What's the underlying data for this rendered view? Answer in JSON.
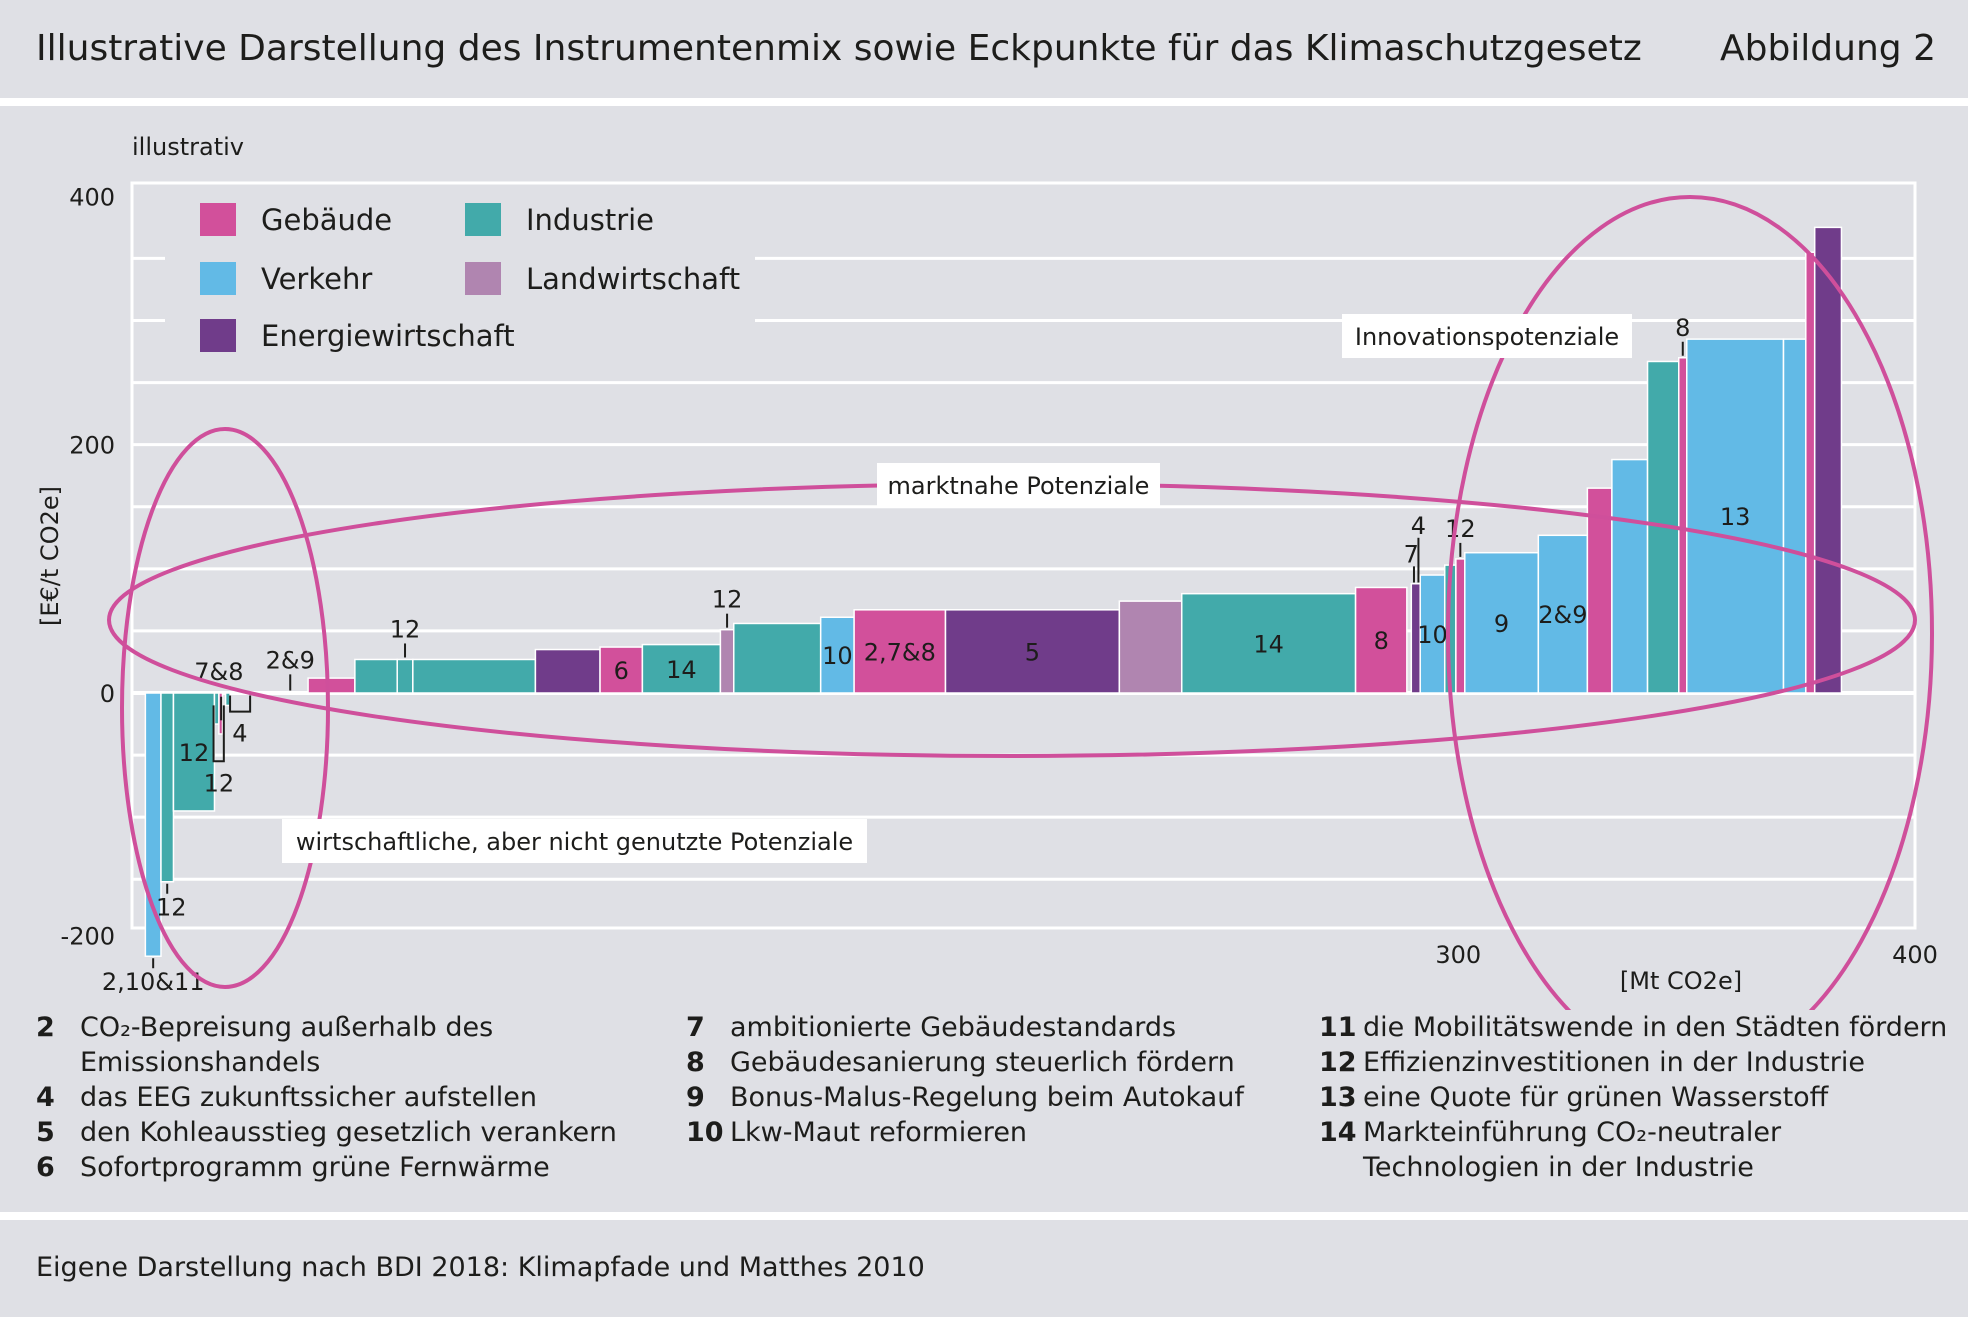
{
  "header": {
    "title": "Illustrative Darstellung des Instrumentenmix sowie Eckpunkte für das Klimaschutzgesetz",
    "figure_label": "Abbildung 2"
  },
  "colors": {
    "Gebäude": "#d2509b",
    "Industrie": "#42aaaa",
    "Verkehr": "#62bae6",
    "Landwirtschaft": "#b085b0",
    "Energiewirtschaft": "#703c8a",
    "ellipse": "#cf4f9b"
  },
  "chart_data": {
    "type": "bar",
    "subtype": "marginal abatement cost curve",
    "note": "illustrativ",
    "ylabel": "[E€/t CO2e]",
    "xlabel": "[Mt CO2e]",
    "ylim": [
      -200,
      400
    ],
    "yticks": [
      "400",
      "200",
      "0",
      "-200"
    ],
    "xlim": [
      0,
      400
    ],
    "xticks": [
      "300",
      "400"
    ],
    "legend": [
      {
        "name": "Gebäude",
        "color": "#d2509b"
      },
      {
        "name": "Industrie",
        "color": "#42aaaa"
      },
      {
        "name": "Verkehr",
        "color": "#62bae6"
      },
      {
        "name": "Landwirtschaft",
        "color": "#b085b0"
      },
      {
        "name": "Energiewirtschaft",
        "color": "#703c8a"
      }
    ],
    "bars": [
      {
        "x0": 3.0,
        "x1": 6.5,
        "y": -212,
        "sector": "Verkehr",
        "label": "2,10&11",
        "pos": "below"
      },
      {
        "x0": 6.5,
        "x1": 9.3,
        "y": -152,
        "sector": "Industrie",
        "label": "12",
        "pos": "below"
      },
      {
        "x0": 9.3,
        "x1": 18.5,
        "y": -95,
        "sector": "Industrie",
        "label": "12",
        "pos": "inside"
      },
      {
        "x0": 18.5,
        "x1": 19.5,
        "y": -25,
        "sector": "Industrie",
        "label": "",
        "pos": "none"
      },
      {
        "x0": 19.5,
        "x1": 20.3,
        "y": -33,
        "sector": "Gebäude",
        "label": "",
        "pos": "none"
      },
      {
        "x0": 21.0,
        "x1": 22.0,
        "y": -10,
        "sector": "Industrie",
        "label": "",
        "pos": "none"
      },
      {
        "x0": 39.5,
        "x1": 50.0,
        "y": 12,
        "sector": "Gebäude",
        "label": "",
        "pos": "none"
      },
      {
        "x0": 50.0,
        "x1": 59.5,
        "y": 27,
        "sector": "Industrie",
        "label": "",
        "pos": "none"
      },
      {
        "x0": 59.5,
        "x1": 63.0,
        "y": 27,
        "sector": "Industrie",
        "label": "12",
        "pos": "above"
      },
      {
        "x0": 63.0,
        "x1": 90.5,
        "y": 27,
        "sector": "Industrie",
        "label": "",
        "pos": "none"
      },
      {
        "x0": 90.5,
        "x1": 105.0,
        "y": 35,
        "sector": "Energiewirtschaft",
        "label": "",
        "pos": "none"
      },
      {
        "x0": 105.0,
        "x1": 114.5,
        "y": 37,
        "sector": "Gebäude",
        "label": "6",
        "pos": "inside"
      },
      {
        "x0": 114.5,
        "x1": 132.0,
        "y": 39,
        "sector": "Industrie",
        "label": "14",
        "pos": "inside"
      },
      {
        "x0": 132.0,
        "x1": 135.0,
        "y": 51,
        "sector": "Landwirtschaft",
        "label": "12",
        "pos": "above"
      },
      {
        "x0": 135.0,
        "x1": 154.5,
        "y": 56,
        "sector": "Industrie",
        "label": "",
        "pos": "none"
      },
      {
        "x0": 154.5,
        "x1": 162.0,
        "y": 61,
        "sector": "Verkehr",
        "label": "10",
        "pos": "inside"
      },
      {
        "x0": 162.0,
        "x1": 182.5,
        "y": 67,
        "sector": "Gebäude",
        "label": "2,7&8",
        "pos": "inside"
      },
      {
        "x0": 182.5,
        "x1": 221.5,
        "y": 67,
        "sector": "Energiewirtschaft",
        "label": "5",
        "pos": "inside"
      },
      {
        "x0": 221.5,
        "x1": 235.5,
        "y": 74,
        "sector": "Landwirtschaft",
        "label": "",
        "pos": "none"
      },
      {
        "x0": 235.5,
        "x1": 274.5,
        "y": 80,
        "sector": "Industrie",
        "label": "14",
        "pos": "inside"
      },
      {
        "x0": 274.5,
        "x1": 286.0,
        "y": 85,
        "sector": "Gebäude",
        "label": "8",
        "pos": "inside"
      },
      {
        "x0": 287.0,
        "x1": 289.0,
        "y": 88,
        "sector": "Energiewirtschaft",
        "label": "",
        "pos": "none"
      },
      {
        "x0": 289.0,
        "x1": 294.5,
        "y": 95,
        "sector": "Verkehr",
        "label": "10",
        "pos": "inside"
      },
      {
        "x0": 294.5,
        "x1": 297.0,
        "y": 103,
        "sector": "Industrie",
        "label": "",
        "pos": "none"
      },
      {
        "x0": 297.0,
        "x1": 299.0,
        "y": 108,
        "sector": "Gebäude",
        "label": "12",
        "pos": "above"
      },
      {
        "x0": 299.0,
        "x1": 315.5,
        "y": 113,
        "sector": "Verkehr",
        "label": "9",
        "pos": "inside"
      },
      {
        "x0": 315.5,
        "x1": 326.5,
        "y": 127,
        "sector": "Verkehr",
        "label": "2&9",
        "pos": "inside"
      },
      {
        "x0": 326.5,
        "x1": 332.0,
        "y": 165,
        "sector": "Gebäude",
        "label": "",
        "pos": "none"
      },
      {
        "x0": 332.0,
        "x1": 340.0,
        "y": 188,
        "sector": "Verkehr",
        "label": "",
        "pos": "none"
      },
      {
        "x0": 340.0,
        "x1": 347.0,
        "y": 267,
        "sector": "Industrie",
        "label": "",
        "pos": "none"
      },
      {
        "x0": 347.0,
        "x1": 348.8,
        "y": 270,
        "sector": "Gebäude",
        "label": "8",
        "pos": "above"
      },
      {
        "x0": 348.8,
        "x1": 370.5,
        "y": 285,
        "sector": "Verkehr",
        "label": "13",
        "pos": "inside"
      },
      {
        "x0": 370.5,
        "x1": 375.5,
        "y": 285,
        "sector": "Verkehr",
        "label": "",
        "pos": "none"
      },
      {
        "x0": 375.5,
        "x1": 377.5,
        "y": 355,
        "sector": "Gebäude",
        "label": "",
        "pos": "none"
      },
      {
        "x0": 377.5,
        "x1": 383.5,
        "y": 375,
        "sector": "Energiewirtschaft",
        "label": "",
        "pos": "none"
      }
    ],
    "extra_labels": [
      "7&8",
      "12",
      "4",
      "2&9",
      "7",
      "4"
    ],
    "annotations": [
      "marktnahe Potenziale",
      "Innovationspotenziale",
      "wirtschaftliche, aber nicht genutzte Potenziale"
    ]
  },
  "notes": {
    "col1": [
      {
        "num": "2",
        "text": "CO₂-Bepreisung außerhalb des"
      },
      {
        "num": "",
        "text": "Emissionshandels"
      },
      {
        "num": "4",
        "text": "das EEG zukunftssicher aufstellen"
      },
      {
        "num": "5",
        "text": "den Kohleausstieg gesetzlich verankern"
      },
      {
        "num": "6",
        "text": "Sofortprogramm grüne Fernwärme"
      }
    ],
    "col2": [
      {
        "num": "7",
        "text": "ambitionierte Gebäudestandards"
      },
      {
        "num": "8",
        "text": "Gebäudesanierung steuerlich fördern"
      },
      {
        "num": "9",
        "text": "Bonus-Malus-Regelung beim Autokauf"
      },
      {
        "num": "10",
        "text": "Lkw-Maut reformieren"
      }
    ],
    "col3": [
      {
        "num": "11",
        "text": "die Mobilitätswende in den Städten fördern"
      },
      {
        "num": "12",
        "text": "Effizienzinvestitionen in der Industrie"
      },
      {
        "num": "13",
        "text": "eine Quote für grünen Wasserstoff"
      },
      {
        "num": "14",
        "text": "Markteinführung CO₂-neutraler"
      },
      {
        "num": "",
        "text": "Technologien in der Industrie"
      }
    ]
  },
  "source": "Eigene Darstellung nach BDI 2018: Klimapfade und Matthes 2010"
}
